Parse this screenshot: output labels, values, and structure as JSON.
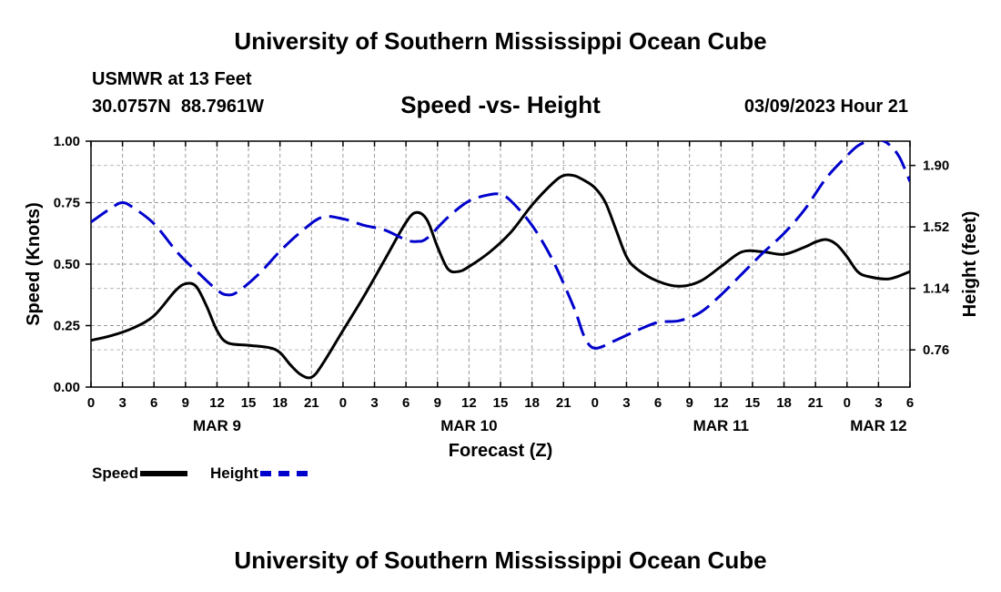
{
  "header": {
    "title": "University of Southern Mississippi Ocean Cube",
    "station": "USMWR at 13 Feet",
    "coordinates": "30.0757N  88.7961W",
    "subtitle": "Speed -vs- Height",
    "datetime": "03/09/2023 Hour 21"
  },
  "footer": {
    "title": "University of Southern Mississippi Ocean Cube"
  },
  "colors": {
    "speed": "#000000",
    "height": "#0000cc",
    "grid": "#999999"
  },
  "chart_data": {
    "type": "line",
    "title": "Speed -vs- Height",
    "xlabel": "Forecast (Z)",
    "ylabel": "Speed (Knots)",
    "ylabel_right": "Height (feet)",
    "x_range_hours": [
      0,
      78
    ],
    "ylim": [
      0,
      1
    ],
    "ylim_right": [
      0.53,
      2.05
    ],
    "x_ticks": [
      {
        "hour": 0,
        "label": "0"
      },
      {
        "hour": 3,
        "label": "3"
      },
      {
        "hour": 6,
        "label": "6"
      },
      {
        "hour": 9,
        "label": "9"
      },
      {
        "hour": 12,
        "label": "12"
      },
      {
        "hour": 15,
        "label": "15"
      },
      {
        "hour": 18,
        "label": "18"
      },
      {
        "hour": 21,
        "label": "21"
      },
      {
        "hour": 24,
        "label": "0"
      },
      {
        "hour": 27,
        "label": "3"
      },
      {
        "hour": 30,
        "label": "6"
      },
      {
        "hour": 33,
        "label": "9"
      },
      {
        "hour": 36,
        "label": "12"
      },
      {
        "hour": 39,
        "label": "15"
      },
      {
        "hour": 42,
        "label": "18"
      },
      {
        "hour": 45,
        "label": "21"
      },
      {
        "hour": 48,
        "label": "0"
      },
      {
        "hour": 51,
        "label": "3"
      },
      {
        "hour": 54,
        "label": "6"
      },
      {
        "hour": 57,
        "label": "9"
      },
      {
        "hour": 60,
        "label": "12"
      },
      {
        "hour": 63,
        "label": "15"
      },
      {
        "hour": 66,
        "label": "18"
      },
      {
        "hour": 69,
        "label": "21"
      },
      {
        "hour": 72,
        "label": "0"
      },
      {
        "hour": 75,
        "label": "3"
      },
      {
        "hour": 78,
        "label": "6"
      }
    ],
    "date_labels": [
      {
        "hour": 12,
        "label": "MAR 9"
      },
      {
        "hour": 36,
        "label": "MAR 10"
      },
      {
        "hour": 60,
        "label": "MAR 11"
      },
      {
        "hour": 75,
        "label": "MAR 12"
      }
    ],
    "y_ticks": [
      {
        "value": 0.0,
        "label": "0.00"
      },
      {
        "value": 0.25,
        "label": "0.25"
      },
      {
        "value": 0.5,
        "label": "0.50"
      },
      {
        "value": 0.75,
        "label": "0.75"
      },
      {
        "value": 1.0,
        "label": "1.00"
      }
    ],
    "y_ticks_right": [
      {
        "value": 0.76,
        "label": "0.76"
      },
      {
        "value": 1.14,
        "label": "1.14"
      },
      {
        "value": 1.52,
        "label": "1.52"
      },
      {
        "value": 1.9,
        "label": "1.90"
      }
    ],
    "series": [
      {
        "name": "Speed",
        "axis": "left",
        "style": "solid",
        "x": [
          0,
          2,
          4,
          6,
          8,
          9,
          10,
          11,
          12,
          13,
          15,
          17,
          18,
          19,
          20,
          21,
          22,
          24,
          26,
          28,
          30,
          31,
          32,
          33,
          34,
          35,
          36,
          38,
          40,
          42,
          44,
          45,
          46,
          47,
          48,
          49,
          50,
          51,
          52,
          54,
          56,
          58,
          60,
          62,
          64,
          66,
          68,
          69,
          70,
          71,
          72,
          73,
          74,
          76,
          78
        ],
        "values": [
          0.19,
          0.21,
          0.24,
          0.29,
          0.39,
          0.42,
          0.41,
          0.33,
          0.23,
          0.18,
          0.17,
          0.16,
          0.14,
          0.09,
          0.05,
          0.04,
          0.09,
          0.23,
          0.37,
          0.52,
          0.67,
          0.71,
          0.68,
          0.57,
          0.48,
          0.47,
          0.49,
          0.55,
          0.63,
          0.74,
          0.83,
          0.86,
          0.86,
          0.84,
          0.81,
          0.75,
          0.64,
          0.53,
          0.48,
          0.43,
          0.41,
          0.43,
          0.49,
          0.55,
          0.55,
          0.54,
          0.57,
          0.59,
          0.6,
          0.58,
          0.53,
          0.47,
          0.45,
          0.44,
          0.47
        ]
      },
      {
        "name": "Height",
        "axis": "right",
        "style": "dashed",
        "x": [
          0,
          2,
          3,
          4,
          6,
          8,
          9,
          10,
          12,
          13,
          14,
          16,
          18,
          20,
          22,
          24,
          26,
          28,
          30,
          31,
          32,
          34,
          36,
          38,
          39,
          40,
          42,
          44,
          46,
          47,
          48,
          50,
          52,
          54,
          56,
          58,
          60,
          62,
          64,
          66,
          68,
          70,
          72,
          73,
          74,
          75,
          76,
          77,
          78
        ],
        "values": [
          1.55,
          1.64,
          1.67,
          1.64,
          1.54,
          1.38,
          1.31,
          1.25,
          1.13,
          1.1,
          1.12,
          1.23,
          1.37,
          1.49,
          1.58,
          1.57,
          1.53,
          1.5,
          1.44,
          1.43,
          1.45,
          1.58,
          1.68,
          1.72,
          1.72,
          1.68,
          1.53,
          1.31,
          1.02,
          0.84,
          0.77,
          0.82,
          0.88,
          0.93,
          0.94,
          0.99,
          1.1,
          1.23,
          1.36,
          1.48,
          1.63,
          1.82,
          1.96,
          2.02,
          2.05,
          2.06,
          2.03,
          1.95,
          1.8
        ]
      }
    ]
  },
  "legend": [
    {
      "label": "Speed",
      "series": "Speed"
    },
    {
      "label": "Height",
      "series": "Height"
    }
  ]
}
